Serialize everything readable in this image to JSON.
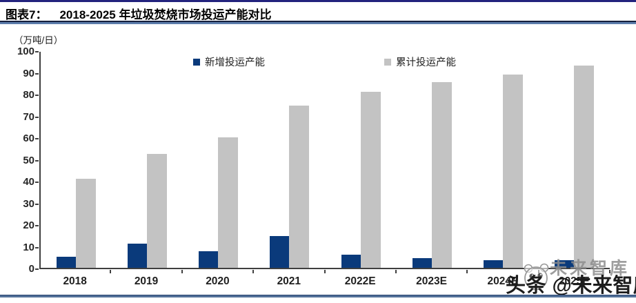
{
  "header": {
    "chart_label": "图表7：",
    "title": "2018-2025 年垃圾焚烧市场投运产能对比"
  },
  "chart_data": {
    "type": "bar",
    "title": "2018-2025 年垃圾焚烧市场投运产能对比",
    "unit_label": "（万吨/日）",
    "categories": [
      "2018",
      "2019",
      "2020",
      "2021",
      "2022E",
      "2023E",
      "2024E",
      "2025E"
    ],
    "series": [
      {
        "name": "新增投运产能",
        "color": "#0a3a7b",
        "values": [
          5,
          11,
          7.5,
          14.5,
          6,
          4.5,
          3.5,
          3.5
        ]
      },
      {
        "name": "累计投运产能",
        "color": "#c3c3c3",
        "values": [
          41,
          52.5,
          60,
          74.5,
          81,
          85.5,
          89,
          93
        ]
      }
    ],
    "ylim": [
      0,
      100
    ],
    "ytick_step": 10,
    "grid": false,
    "legend_position": "top-center"
  },
  "watermark": {
    "brand_text": "未来智库",
    "overlay_text": "头条 @未来智库",
    "logo": "mascot-face-logo"
  },
  "colors": {
    "bar_new": "#0a3a7b",
    "bar_cumulative": "#c3c3c3",
    "axis": "#3f3f3f",
    "top_rule": "#23237d",
    "title_rule_dark": "#141e3c",
    "title_rule_light": "#5c7dab",
    "bottom_rule": "#537199"
  }
}
